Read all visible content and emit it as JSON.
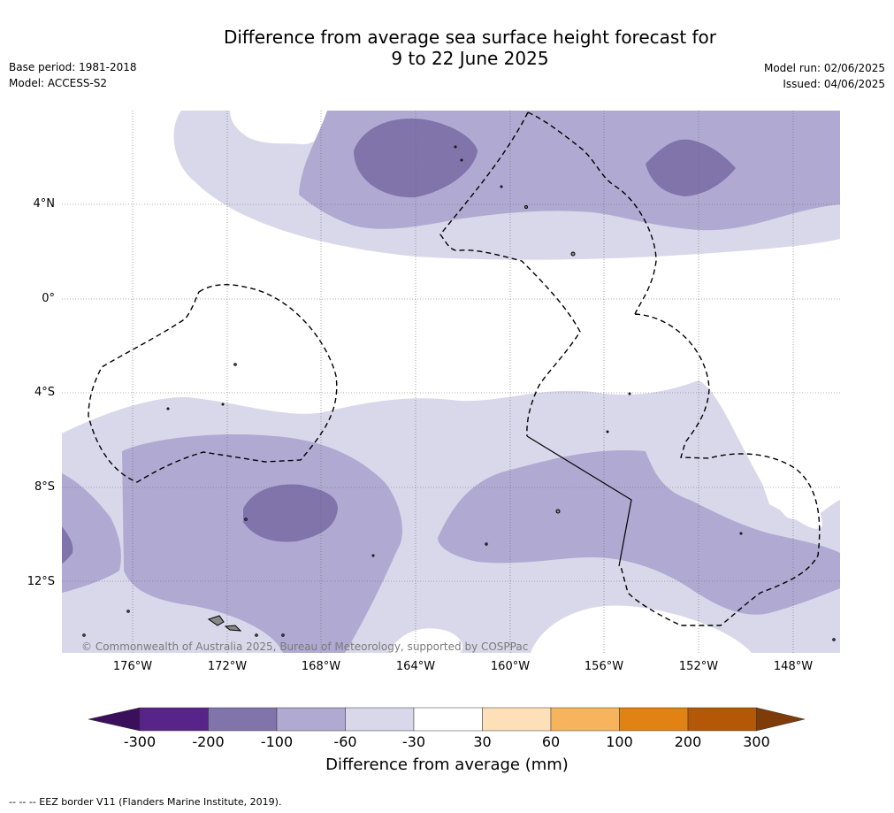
{
  "title": {
    "line1": "Difference from average sea surface height forecast for",
    "line2": "9 to 22 June 2025"
  },
  "meta": {
    "base_period": "Base period: 1981-2018",
    "model": "Model: ACCESS-S2",
    "model_run": "Model run: 02/06/2025",
    "issued": "Issued: 04/06/2025"
  },
  "map": {
    "lat_labels": [
      "4°N",
      "0°",
      "4°S",
      "8°S",
      "12°S"
    ],
    "lon_labels": [
      "176°W",
      "172°W",
      "168°W",
      "164°W",
      "160°W",
      "156°W",
      "152°W",
      "148°W"
    ],
    "copyright": "© Commonwealth of Australia 2025, Bureau of Meteorology, supported by COSPPac",
    "colors": {
      "ocean_near_zero": "#ffffff",
      "band_-60_-30": "#d8d8ea",
      "band_-100_-60": "#b0aad2",
      "band_-200_-100": "#8074ab",
      "band_below_-300": "#3a1060",
      "land": "#999999",
      "eez_line": "#000000"
    }
  },
  "colorbar": {
    "title": "Difference from average (mm)",
    "ticks": [
      "-300",
      "-200",
      "-100",
      "-60",
      "-30",
      "30",
      "60",
      "100",
      "200",
      "300"
    ],
    "colors": [
      "#3b0f5c",
      "#57248a",
      "#8074ab",
      "#b0aad2",
      "#d8d8ea",
      "#ffffff",
      "#fde0b8",
      "#f8b45c",
      "#e08214",
      "#b35806",
      "#7f3b08"
    ]
  },
  "footer": "--  --  -- EEZ border V11 (Flanders Marine Institute, 2019)."
}
